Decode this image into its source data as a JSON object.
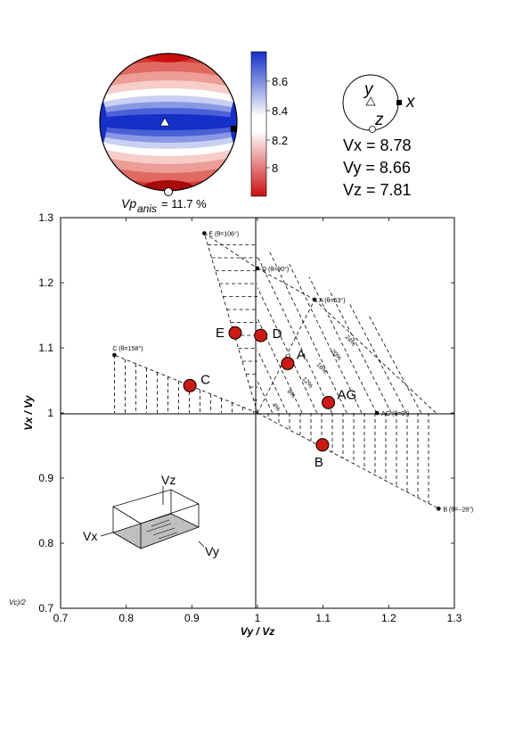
{
  "stereonet": {
    "colorbar_ticks": [
      "8.6",
      "8.4",
      "8.2",
      "8"
    ],
    "anisotropy_label": "Vp",
    "anisotropy_sub": "anis",
    "anisotropy_value": "= 11.7 %",
    "colors": {
      "high": "#1430c8",
      "mid": "#ffffff",
      "low": "#cc0f10"
    }
  },
  "axes_key": {
    "y": "y",
    "x": "x",
    "z": "z"
  },
  "velocities": {
    "vx": "Vx = 8.78",
    "vy": "Vy = 8.66",
    "vz": "Vz = 7.81"
  },
  "chart_data": {
    "type": "scatter",
    "xlabel": "Vy / Vz",
    "ylabel": "Vx / Vy",
    "xlim": [
      0.7,
      1.3
    ],
    "ylim": [
      0.7,
      1.3
    ],
    "x_ticks": [
      "0.7",
      "0.8",
      "0.9",
      "1",
      "1.1",
      "1.2",
      "1.3"
    ],
    "y_ticks": [
      "0.7",
      "0.8",
      "0.9",
      "1",
      "1.1",
      "1.2",
      "1.3"
    ],
    "corner_note": "Vc)/2",
    "reference_points": [
      {
        "label": "E (θ=106°)",
        "x": 0.919,
        "y": 1.276
      },
      {
        "label": "D (θ=90°)",
        "x": 1.0,
        "y": 1.222
      },
      {
        "label": "A (θ=63°)",
        "x": 1.087,
        "y": 1.174
      },
      {
        "label": "C (θ=158°)",
        "x": 0.782,
        "y": 1.089
      },
      {
        "label": "AG (θ=0°)",
        "x": 1.182,
        "y": 1.0
      },
      {
        "label": "B (θ=−28°)",
        "x": 1.276,
        "y": 0.853
      }
    ],
    "samples": [
      {
        "label": "E",
        "x": 0.966,
        "y": 1.123
      },
      {
        "label": "D",
        "x": 1.005,
        "y": 1.119
      },
      {
        "label": "A",
        "x": 1.046,
        "y": 1.076
      },
      {
        "label": "C",
        "x": 0.897,
        "y": 1.042
      },
      {
        "label": "AG",
        "x": 1.108,
        "y": 1.016
      },
      {
        "label": "B",
        "x": 1.099,
        "y": 0.951
      }
    ],
    "contour_labels": [
      "4%",
      "8%",
      "12%",
      "16%",
      "20%",
      "24%"
    ],
    "sample_color": "#cc1a14"
  },
  "inset": {
    "vz": "Vz",
    "vx": "Vx",
    "vy": "Vy"
  }
}
